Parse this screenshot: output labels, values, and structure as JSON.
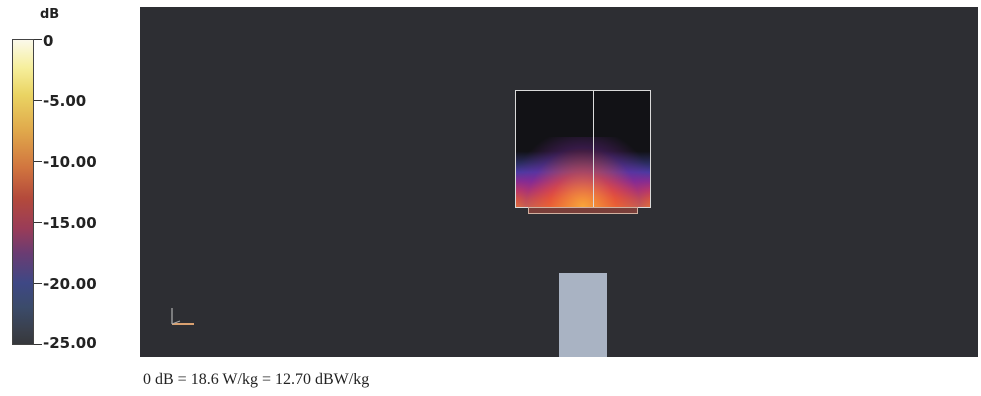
{
  "legend": {
    "unit": "dB",
    "ticks": [
      "0",
      "-5.00",
      "-10.00",
      "-15.00",
      "-20.00",
      "-25.00"
    ]
  },
  "caption": "0 dB = 18.6 W/kg = 12.70 dBW/kg",
  "colors": {
    "background": "#2d2e33",
    "device": "#a9b3c3",
    "hotspot": "#ef7a2c"
  }
}
